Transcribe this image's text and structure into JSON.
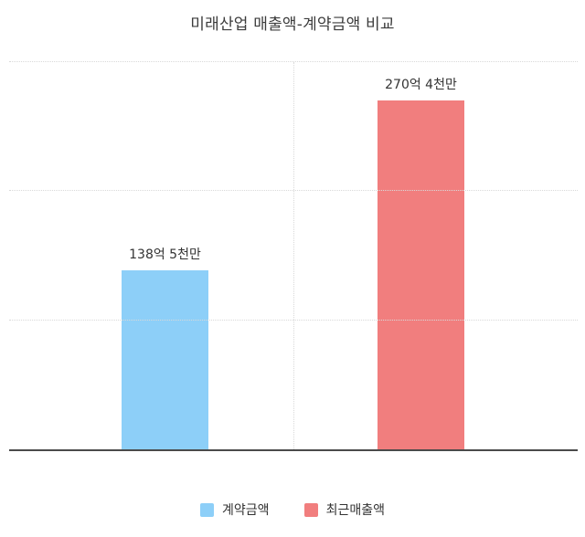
{
  "chart_data": {
    "type": "bar",
    "title": "미래산업 매출액-계약금액 비교",
    "categories": [
      "계약금액",
      "최근매출액"
    ],
    "values": [
      138.5,
      270.4
    ],
    "value_labels": [
      "138억 5천만",
      "270억 4천만"
    ],
    "unit": "억 원",
    "colors": [
      "#8DCFF8",
      "#F17E7E"
    ],
    "ylim": [
      0,
      300
    ],
    "gridlines": [
      100,
      200,
      300
    ],
    "grid": true,
    "grid_style": "dotted",
    "legend_position": "bottom",
    "legend": [
      {
        "label": "계약금액",
        "color": "#8DCFF8"
      },
      {
        "label": "최근매출액",
        "color": "#F17E7E"
      }
    ]
  }
}
